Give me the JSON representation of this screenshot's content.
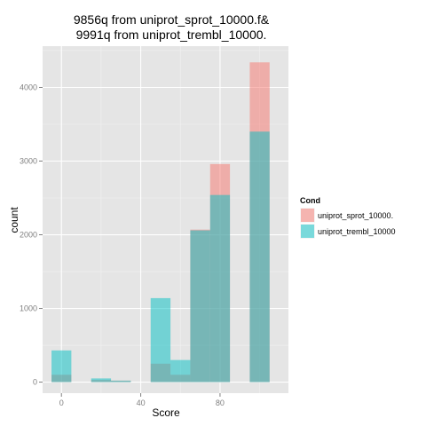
{
  "chart_data": {
    "type": "bar",
    "title_lines": [
      "9856q from  uniprot_sprot_10000.f&",
      "9991q from uniprot_trembl_10000."
    ],
    "xlabel": "Score",
    "ylabel": "count",
    "xlim": [
      -9.5,
      114.5
    ],
    "ylim": [
      -150,
      4560
    ],
    "x_ticks": [
      0,
      40,
      80
    ],
    "y_ticks": [
      0,
      1000,
      2000,
      3000,
      4000
    ],
    "grid": true,
    "bin_width": 10,
    "legend": {
      "title": "Cond",
      "placement": "right",
      "entries": [
        {
          "label": "uniprot_sprot_10000.",
          "color": "#F8766D"
        },
        {
          "label": "uniprot_trembl_10000",
          "color": "#00BFC4"
        }
      ]
    },
    "bin_starts": [
      0,
      10,
      20,
      30,
      40,
      50,
      60,
      70,
      80,
      90,
      100
    ],
    "series": [
      {
        "name": "uniprot_sprot_10000.",
        "color": "#F8766D",
        "values": [
          100,
          0,
          30,
          20,
          0,
          250,
          100,
          2070,
          2960,
          0,
          4340
        ]
      },
      {
        "name": "uniprot_trembl_10000",
        "color": "#00BFC4",
        "values": [
          430,
          0,
          50,
          20,
          0,
          1140,
          300,
          2060,
          2540,
          0,
          3400
        ]
      }
    ]
  }
}
